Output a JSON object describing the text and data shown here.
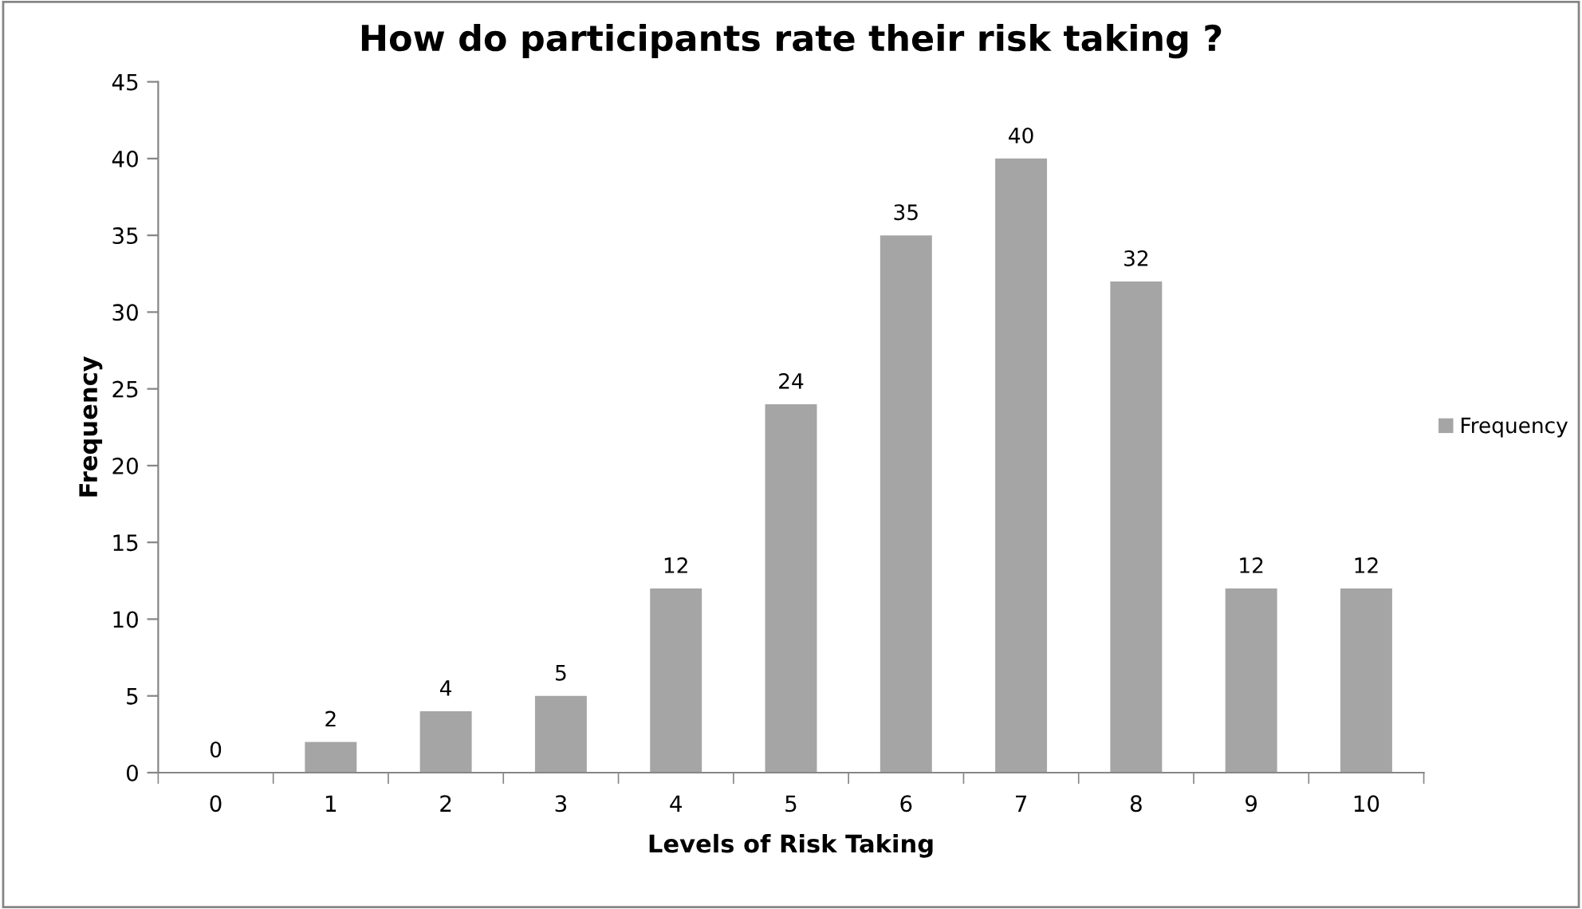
{
  "chart_data": {
    "type": "bar",
    "title": "How do participants rate their risk taking ?",
    "xlabel": "Levels of Risk Taking",
    "ylabel": "Frequency",
    "categories": [
      "0",
      "1",
      "2",
      "3",
      "4",
      "5",
      "6",
      "7",
      "8",
      "9",
      "10"
    ],
    "series": [
      {
        "name": "Frequency",
        "color": "#a5a5a5",
        "values": [
          0,
          2,
          4,
          5,
          12,
          24,
          35,
          40,
          32,
          12,
          12
        ]
      }
    ],
    "ylim": [
      0,
      45
    ],
    "yticks": [
      0,
      5,
      10,
      15,
      20,
      25,
      30,
      35,
      40,
      45
    ],
    "grid": false,
    "legend": "right",
    "data_labels": true
  }
}
